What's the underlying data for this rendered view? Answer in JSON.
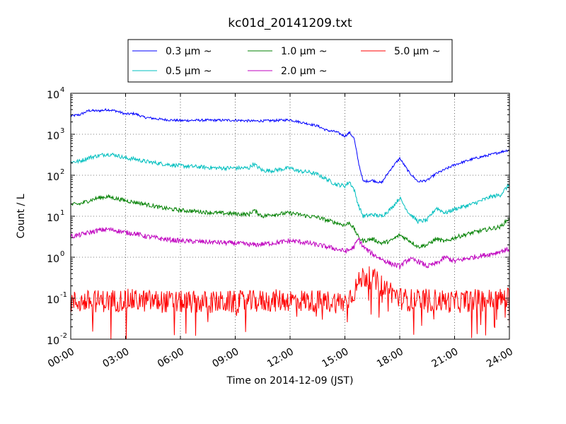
{
  "chart_data": {
    "type": "line",
    "title": "kc01d_20141209.txt",
    "xlabel": "Time on 2014-12-09 (JST)",
    "ylabel": "Count / L",
    "yscale": "log",
    "xlim": [
      "00:00",
      "24:00"
    ],
    "ylim": [
      0.01,
      10000
    ],
    "x_ticks": [
      "00:00",
      "03:00",
      "06:00",
      "09:00",
      "12:00",
      "15:00",
      "18:00",
      "21:00",
      "24:00"
    ],
    "y_ticks": [
      {
        "base": "10",
        "exp": "-2",
        "value": 0.01
      },
      {
        "base": "10",
        "exp": "-1",
        "value": 0.1
      },
      {
        "base": "10",
        "exp": "0",
        "value": 1
      },
      {
        "base": "10",
        "exp": "1",
        "value": 10
      },
      {
        "base": "10",
        "exp": "2",
        "value": 100
      },
      {
        "base": "10",
        "exp": "3",
        "value": 1000
      },
      {
        "base": "10",
        "exp": "4",
        "value": 10000
      }
    ],
    "grid": true,
    "legend_position": "top",
    "series": [
      {
        "name": "0.3 μm ~",
        "color": "#0000ff",
        "noise": 0.03,
        "x": [
          "00:00",
          "00:30",
          "01:00",
          "01:30",
          "02:00",
          "02:30",
          "03:00",
          "03:30",
          "04:00",
          "05:00",
          "06:00",
          "07:00",
          "08:00",
          "09:00",
          "10:00",
          "11:00",
          "12:00",
          "12:30",
          "13:00",
          "13:30",
          "14:00",
          "14:30",
          "15:00",
          "15:15",
          "15:30",
          "15:45",
          "16:00",
          "16:30",
          "17:00",
          "17:30",
          "18:00",
          "18:30",
          "19:00",
          "19:30",
          "20:00",
          "20:30",
          "21:00",
          "22:00",
          "23:00",
          "24:00"
        ],
        "y": [
          2800,
          3000,
          3800,
          3700,
          4000,
          3700,
          3100,
          3200,
          2600,
          2300,
          2150,
          2200,
          2200,
          2200,
          2100,
          2150,
          2250,
          2000,
          1800,
          1600,
          1250,
          1150,
          900,
          1100,
          800,
          200,
          70,
          75,
          65,
          140,
          260,
          120,
          70,
          75,
          110,
          140,
          180,
          250,
          320,
          420
        ]
      },
      {
        "name": "0.5 μm ~",
        "color": "#00bfbf",
        "noise": 0.05,
        "x": [
          "00:00",
          "00:30",
          "01:00",
          "01:30",
          "02:00",
          "02:30",
          "03:00",
          "03:30",
          "04:00",
          "05:00",
          "06:00",
          "07:00",
          "08:00",
          "09:00",
          "09:45",
          "10:00",
          "10:30",
          "11:00",
          "12:00",
          "12:30",
          "13:00",
          "13:30",
          "14:00",
          "14:30",
          "15:00",
          "15:15",
          "15:30",
          "15:45",
          "16:00",
          "16:30",
          "17:00",
          "17:30",
          "18:00",
          "18:30",
          "19:00",
          "19:30",
          "20:00",
          "20:30",
          "21:00",
          "22:00",
          "23:00",
          "23:30",
          "24:00"
        ],
        "y": [
          210,
          220,
          270,
          300,
          330,
          310,
          260,
          250,
          220,
          190,
          170,
          160,
          150,
          150,
          150,
          190,
          130,
          130,
          150,
          125,
          120,
          105,
          80,
          60,
          55,
          70,
          45,
          18,
          10,
          11,
          10,
          15,
          28,
          12,
          7.5,
          8,
          16,
          12,
          15,
          20,
          30,
          33,
          60
        ]
      },
      {
        "name": "1.0 μm ~",
        "color": "#008000",
        "noise": 0.05,
        "x": [
          "00:00",
          "00:30",
          "01:00",
          "01:30",
          "02:00",
          "02:30",
          "03:00",
          "03:30",
          "04:00",
          "05:00",
          "06:00",
          "07:00",
          "08:00",
          "09:00",
          "09:45",
          "10:00",
          "10:30",
          "11:00",
          "12:00",
          "12:30",
          "13:00",
          "13:30",
          "14:00",
          "14:30",
          "15:00",
          "15:15",
          "15:30",
          "15:45",
          "16:00",
          "16:30",
          "17:00",
          "17:30",
          "18:00",
          "18:30",
          "19:00",
          "19:30",
          "20:00",
          "20:30",
          "21:00",
          "22:00",
          "23:00",
          "23:30",
          "24:00"
        ],
        "y": [
          19,
          20,
          24,
          28,
          30,
          27,
          24,
          22,
          20,
          16,
          14,
          13,
          12,
          11.5,
          11,
          14,
          10,
          11,
          12,
          11,
          10,
          9.5,
          8,
          7,
          6,
          7,
          5,
          3,
          2.5,
          2.8,
          2.2,
          2.5,
          3.5,
          2.6,
          1.8,
          2,
          2.8,
          2.4,
          3,
          4,
          5,
          5.5,
          9
        ]
      },
      {
        "name": "2.0 μm ~",
        "color": "#bf00bf",
        "noise": 0.06,
        "x": [
          "00:00",
          "00:30",
          "01:00",
          "01:30",
          "02:00",
          "02:30",
          "03:00",
          "03:30",
          "04:00",
          "05:00",
          "06:00",
          "07:00",
          "08:00",
          "09:00",
          "10:00",
          "11:00",
          "12:00",
          "12:30",
          "13:00",
          "13:30",
          "14:00",
          "14:30",
          "15:00",
          "15:15",
          "15:30",
          "15:45",
          "16:00",
          "16:30",
          "17:00",
          "17:30",
          "18:00",
          "18:30",
          "19:00",
          "19:30",
          "20:00",
          "20:30",
          "21:00",
          "22:00",
          "23:00",
          "24:00"
        ],
        "y": [
          3.2,
          3.5,
          4,
          4.5,
          4.8,
          4.5,
          4,
          3.8,
          3.3,
          2.8,
          2.5,
          2.4,
          2.3,
          2.2,
          2,
          2.2,
          2.5,
          2.4,
          2.2,
          2,
          1.8,
          1.6,
          1.4,
          1.5,
          1.8,
          2.8,
          1.8,
          1.2,
          0.9,
          0.7,
          0.6,
          0.9,
          0.8,
          0.6,
          0.7,
          1,
          0.8,
          1,
          1.2,
          1.6
        ]
      },
      {
        "name": "5.0 μm ~",
        "color": "#ff0000",
        "noise": 0.28,
        "x": [
          "00:00",
          "03:00",
          "06:00",
          "09:00",
          "12:00",
          "15:00",
          "15:30",
          "16:00",
          "16:30",
          "17:00",
          "17:30",
          "18:00",
          "18:30",
          "19:00",
          "20:00",
          "21:00",
          "22:00",
          "23:00",
          "24:00"
        ],
        "y": [
          0.08,
          0.09,
          0.08,
          0.08,
          0.09,
          0.08,
          0.15,
          0.35,
          0.3,
          0.2,
          0.15,
          0.1,
          0.09,
          0.09,
          0.09,
          0.08,
          0.09,
          0.09,
          0.1
        ]
      }
    ]
  }
}
